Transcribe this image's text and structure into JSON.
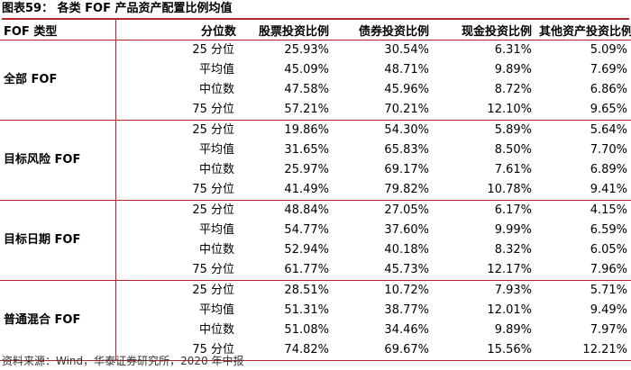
{
  "title": "图表59： 各类 FOF 产品资产配置比例均值",
  "table": {
    "headers": [
      "FOF 类型",
      "分位数",
      "股票投资比例",
      "债券投资比例",
      "现金投资比例",
      "其他资产投资比例"
    ],
    "groups": [
      {
        "name": "全部 FOF",
        "rows": [
          [
            "25 分位",
            "25.93%",
            "30.54%",
            "6.31%",
            "5.09%"
          ],
          [
            "平均值",
            "45.09%",
            "48.71%",
            "9.89%",
            "7.69%"
          ],
          [
            "中位数",
            "47.58%",
            "45.96%",
            "8.72%",
            "6.86%"
          ],
          [
            "75 分位",
            "57.21%",
            "70.21%",
            "12.10%",
            "9.65%"
          ]
        ]
      },
      {
        "name": "目标风险 FOF",
        "rows": [
          [
            "25 分位",
            "19.86%",
            "54.30%",
            "5.89%",
            "5.64%"
          ],
          [
            "平均值",
            "31.65%",
            "65.83%",
            "8.50%",
            "7.70%"
          ],
          [
            "中位数",
            "25.97%",
            "69.17%",
            "7.61%",
            "6.89%"
          ],
          [
            "75 分位",
            "41.49%",
            "79.82%",
            "10.78%",
            "9.41%"
          ]
        ]
      },
      {
        "name": "目标日期 FOF",
        "rows": [
          [
            "25 分位",
            "48.84%",
            "27.05%",
            "6.17%",
            "4.15%"
          ],
          [
            "平均值",
            "54.77%",
            "37.60%",
            "9.99%",
            "6.59%"
          ],
          [
            "中位数",
            "52.94%",
            "40.18%",
            "8.32%",
            "6.05%"
          ],
          [
            "75 分位",
            "61.77%",
            "45.73%",
            "12.17%",
            "7.96%"
          ]
        ]
      },
      {
        "name": "普通混合 FOF",
        "rows": [
          [
            "25 分位",
            "28.51%",
            "10.72%",
            "7.93%",
            "5.71%"
          ],
          [
            "平均值",
            "51.31%",
            "38.77%",
            "12.01%",
            "9.49%"
          ],
          [
            "中位数",
            "51.08%",
            "34.46%",
            "9.89%",
            "7.97%"
          ],
          [
            "75 分位",
            "74.82%",
            "69.67%",
            "15.56%",
            "12.21%"
          ]
        ]
      }
    ]
  },
  "source": "资料来源：Wind，华泰证券研究所，2020 年中报",
  "colors": {
    "rule": "#b0242b"
  }
}
